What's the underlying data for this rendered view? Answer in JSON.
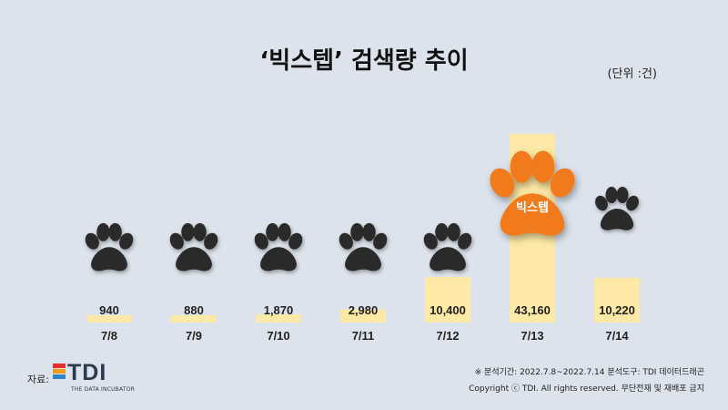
{
  "header": {
    "title": "‘빅스텝’ 검색량 추이",
    "unit": "(단위 :건)"
  },
  "chart_data": {
    "type": "bar",
    "title": "‘빅스텝’ 검색량 추이",
    "unit_label": "(단위 :건)",
    "categories": [
      "7/8",
      "7/9",
      "7/10",
      "7/11",
      "7/12",
      "7/13",
      "7/14"
    ],
    "values": [
      940,
      880,
      1870,
      2980,
      10400,
      43160,
      10220
    ],
    "value_labels": [
      "940",
      "880",
      "1,870",
      "2,980",
      "10,400",
      "43,160",
      "10,220"
    ],
    "highlight_index": 5,
    "highlight_label": "빅스텝",
    "colors": {
      "bar": "#fde9a5",
      "paw": "#2b2b2b",
      "highlight_paw": "#f07a1a",
      "background": "#dde3ec"
    }
  },
  "footer": {
    "source_label": "자료:",
    "logo_text": "TDI",
    "logo_sub": "THE DATA INCUBATOR",
    "logo_colors": [
      "#e4322b",
      "#f29a1f",
      "#2e86c9"
    ],
    "analysis_note": "※ 분석기간: 2022.7.8~2022.7.14   분석도구: TDI 데이터드래곤",
    "copyright": "Copyright ⓒ TDI. All rights reserved. 무단전재 및 재배포 금지"
  }
}
